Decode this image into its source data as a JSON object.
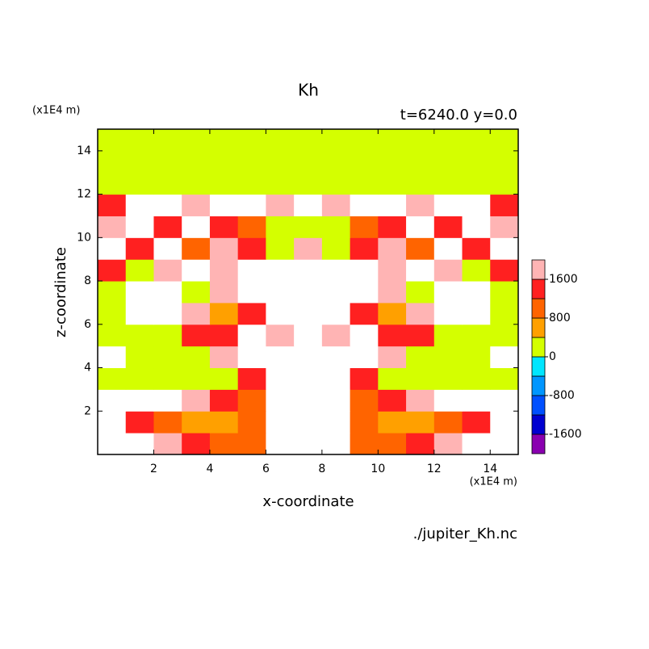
{
  "chart_data": {
    "type": "contour",
    "title": "Kh",
    "subtitle": "t=6240.0 y=0.0",
    "x_unit": "(x1E4 m)",
    "y_unit": "(x1E4 m)",
    "xlabel": "x-coordinate",
    "ylabel": "z-coordinate",
    "source": "./jupiter_Kh.nc",
    "xlim": [
      0,
      15
    ],
    "ylim": [
      0,
      15
    ],
    "xticks": [
      2,
      4,
      6,
      8,
      10,
      12,
      14
    ],
    "yticks": [
      2,
      4,
      6,
      8,
      10,
      12,
      14
    ],
    "x": [
      0.5,
      1.5,
      2.5,
      3.5,
      4.5,
      5.5,
      6.5,
      7.5,
      8.5,
      9.5,
      10.5,
      11.5,
      12.5,
      13.5,
      14.5
    ],
    "y": [
      0.5,
      1.5,
      2.5,
      3.5,
      4.5,
      5.5,
      6.5,
      7.5,
      8.5,
      9.5,
      10.5,
      11.5,
      12.5,
      13.5,
      14.5
    ],
    "z": [
      [
        2400,
        2400,
        1800,
        1400,
        1000,
        1000,
        2400,
        2400,
        2400,
        1000,
        1000,
        1400,
        1800,
        2400,
        2400
      ],
      [
        2400,
        1400,
        1000,
        600,
        600,
        1000,
        2400,
        2400,
        2400,
        1000,
        600,
        600,
        1000,
        1400,
        2400
      ],
      [
        2400,
        2400,
        2400,
        1800,
        1400,
        1000,
        2400,
        2400,
        2400,
        1000,
        1400,
        1800,
        2400,
        2400,
        2400
      ],
      [
        200,
        200,
        200,
        200,
        200,
        1400,
        2400,
        2400,
        2400,
        1400,
        200,
        200,
        200,
        200,
        200
      ],
      [
        2400,
        200,
        200,
        200,
        1800,
        2400,
        2400,
        2400,
        2400,
        2400,
        1800,
        200,
        200,
        200,
        2400
      ],
      [
        200,
        200,
        200,
        1400,
        1400,
        2400,
        1800,
        2400,
        1800,
        2400,
        1400,
        1400,
        200,
        200,
        200
      ],
      [
        200,
        2400,
        2400,
        1800,
        600,
        1400,
        2400,
        2400,
        2400,
        1400,
        600,
        1800,
        2400,
        2400,
        200
      ],
      [
        200,
        2400,
        2400,
        200,
        1800,
        2400,
        2400,
        2400,
        2400,
        2400,
        1800,
        200,
        2400,
        2400,
        200
      ],
      [
        1400,
        200,
        1800,
        2400,
        1800,
        2400,
        2400,
        2400,
        2400,
        2400,
        1800,
        2400,
        1800,
        200,
        1400
      ],
      [
        2400,
        1400,
        2400,
        1000,
        1800,
        1400,
        200,
        1800,
        200,
        1400,
        1800,
        1000,
        2400,
        1400,
        2400
      ],
      [
        1800,
        2400,
        1400,
        2400,
        1400,
        1000,
        200,
        200,
        200,
        1000,
        1400,
        2400,
        1400,
        2400,
        1800
      ],
      [
        1400,
        2400,
        2400,
        1800,
        2400,
        2400,
        1800,
        2400,
        1800,
        2400,
        2400,
        1800,
        2400,
        2400,
        1400
      ],
      [
        200,
        200,
        200,
        200,
        200,
        200,
        200,
        200,
        200,
        200,
        200,
        200,
        200,
        200,
        200
      ],
      [
        200,
        200,
        200,
        200,
        200,
        200,
        200,
        200,
        200,
        200,
        200,
        200,
        200,
        200,
        200
      ],
      [
        200,
        200,
        200,
        200,
        200,
        200,
        200,
        200,
        200,
        200,
        200,
        200,
        200,
        200,
        200
      ]
    ],
    "levels": [
      -1600,
      -1200,
      -800,
      -400,
      0,
      400,
      800,
      1200,
      1600,
      2000
    ],
    "colors": [
      "#8a00b0",
      "#0000d0",
      "#0050ff",
      "#0096ff",
      "#00e6ff",
      "#d4ff00",
      "#ffa000",
      "#ff6400",
      "#ff2020",
      "#ffb4b4"
    ],
    "above_color": "#ffffff",
    "colorbar_ticks": [
      -1600,
      -800,
      0,
      800,
      1600
    ]
  }
}
